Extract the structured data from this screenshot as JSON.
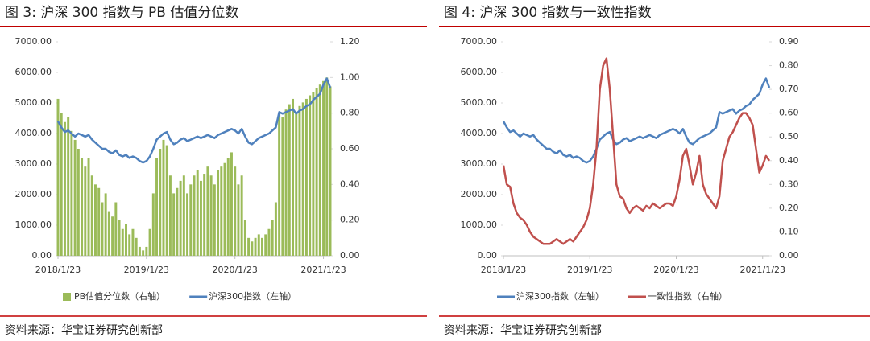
{
  "chart_data": [
    {
      "type": "combo",
      "title": "图 3:  沪深 300 指数与 PB 估值分位数",
      "source": "资料来源：华宝证券研究创新部",
      "categories": [
        "2018/1/23",
        null,
        null,
        null,
        null,
        null,
        null,
        null,
        null,
        null,
        null,
        null,
        null,
        null,
        null,
        null,
        null,
        null,
        null,
        null,
        null,
        null,
        null,
        null,
        null,
        null,
        "2019/1/23",
        null,
        null,
        null,
        null,
        null,
        null,
        null,
        null,
        null,
        null,
        null,
        null,
        null,
        null,
        null,
        null,
        null,
        null,
        null,
        null,
        null,
        null,
        null,
        null,
        null,
        "2020/1/23",
        null,
        null,
        null,
        null,
        null,
        null,
        null,
        null,
        null,
        null,
        null,
        null,
        null,
        null,
        null,
        null,
        null,
        null,
        null,
        null,
        null,
        null,
        null,
        null,
        null,
        "2021/1/23",
        null,
        null
      ],
      "ylim": [
        0,
        7000
      ],
      "yticks": [
        {
          "value": 0,
          "label": "0.00"
        },
        {
          "value": 1000,
          "label": "1000.00"
        },
        {
          "value": 2000,
          "label": "2000.00"
        },
        {
          "value": 3000,
          "label": "3000.00"
        },
        {
          "value": 4000,
          "label": "4000.00"
        },
        {
          "value": 5000,
          "label": "5000.00"
        },
        {
          "value": 6000,
          "label": "6000.00"
        },
        {
          "value": 7000,
          "label": "7000.00"
        }
      ],
      "y2lim": [
        0,
        1.2
      ],
      "y2ticks": [
        {
          "value": 0,
          "label": "0.00"
        },
        {
          "value": 0.2,
          "label": "0.20"
        },
        {
          "value": 0.4,
          "label": "0.40"
        },
        {
          "value": 0.6,
          "label": "0.60"
        },
        {
          "value": 0.8,
          "label": "0.80"
        },
        {
          "value": 1.0,
          "label": "1.00"
        },
        {
          "value": 1.2,
          "label": "1.20"
        }
      ],
      "series": [
        {
          "name": "PB估值分位数（右轴）",
          "type": "bar",
          "axis": "y2",
          "color": "#9bbb59",
          "values": [
            0.88,
            0.8,
            0.75,
            0.78,
            0.7,
            0.65,
            0.6,
            0.55,
            0.5,
            0.55,
            0.45,
            0.4,
            0.38,
            0.3,
            0.35,
            0.25,
            0.22,
            0.3,
            0.2,
            0.15,
            0.18,
            0.12,
            0.15,
            0.1,
            0.05,
            0.03,
            0.05,
            0.15,
            0.35,
            0.55,
            0.6,
            0.65,
            0.62,
            0.45,
            0.35,
            0.38,
            0.42,
            0.45,
            0.35,
            0.4,
            0.45,
            0.48,
            0.42,
            0.46,
            0.5,
            0.45,
            0.4,
            0.48,
            0.5,
            0.52,
            0.55,
            0.58,
            0.5,
            0.4,
            0.45,
            0.2,
            0.1,
            0.08,
            0.1,
            0.12,
            0.1,
            0.12,
            0.15,
            0.2,
            0.3,
            0.8,
            0.78,
            0.82,
            0.85,
            0.88,
            0.8,
            0.84,
            0.86,
            0.88,
            0.9,
            0.92,
            0.94,
            0.96,
            0.98,
            1.0,
            0.95
          ]
        },
        {
          "name": "沪深300指数（左轴）",
          "type": "line",
          "color": "#4f81bd",
          "values": [
            4400,
            4200,
            4050,
            4100,
            4000,
            3900,
            4000,
            3950,
            3900,
            3950,
            3800,
            3700,
            3600,
            3500,
            3500,
            3400,
            3350,
            3450,
            3300,
            3250,
            3300,
            3200,
            3250,
            3200,
            3100,
            3050,
            3100,
            3250,
            3500,
            3800,
            3900,
            4000,
            4050,
            3800,
            3650,
            3700,
            3800,
            3850,
            3750,
            3800,
            3850,
            3900,
            3850,
            3900,
            3950,
            3900,
            3850,
            3950,
            4000,
            4050,
            4100,
            4150,
            4100,
            4000,
            4150,
            3900,
            3700,
            3650,
            3750,
            3850,
            3900,
            3950,
            4000,
            4100,
            4200,
            4700,
            4650,
            4700,
            4750,
            4800,
            4650,
            4750,
            4800,
            4900,
            4950,
            5100,
            5200,
            5300,
            5600,
            5800,
            5500
          ]
        }
      ]
    },
    {
      "type": "line",
      "title": "图 4:  沪深 300 指数与一致性指数",
      "source": "资料来源：华宝证券研究创新部",
      "categories": [
        "2018/1/23",
        null,
        null,
        null,
        null,
        null,
        null,
        null,
        null,
        null,
        null,
        null,
        null,
        null,
        null,
        null,
        null,
        null,
        null,
        null,
        null,
        null,
        null,
        null,
        null,
        null,
        "2019/1/23",
        null,
        null,
        null,
        null,
        null,
        null,
        null,
        null,
        null,
        null,
        null,
        null,
        null,
        null,
        null,
        null,
        null,
        null,
        null,
        null,
        null,
        null,
        null,
        null,
        null,
        "2020/1/23",
        null,
        null,
        null,
        null,
        null,
        null,
        null,
        null,
        null,
        null,
        null,
        null,
        null,
        null,
        null,
        null,
        null,
        null,
        null,
        null,
        null,
        null,
        null,
        null,
        null,
        "2021/1/23",
        null,
        null
      ],
      "ylim": [
        0,
        7000
      ],
      "yticks": [
        {
          "value": 0,
          "label": "0.00"
        },
        {
          "value": 1000,
          "label": "1000.00"
        },
        {
          "value": 2000,
          "label": "2000.00"
        },
        {
          "value": 3000,
          "label": "3000.00"
        },
        {
          "value": 4000,
          "label": "4000.00"
        },
        {
          "value": 5000,
          "label": "5000.00"
        },
        {
          "value": 6000,
          "label": "6000.00"
        },
        {
          "value": 7000,
          "label": "7000.00"
        }
      ],
      "y2lim": [
        0,
        0.9
      ],
      "y2ticks": [
        {
          "value": 0,
          "label": "0.00"
        },
        {
          "value": 0.1,
          "label": "0.10"
        },
        {
          "value": 0.2,
          "label": "0.20"
        },
        {
          "value": 0.3,
          "label": "0.30"
        },
        {
          "value": 0.4,
          "label": "0.40"
        },
        {
          "value": 0.5,
          "label": "0.50"
        },
        {
          "value": 0.6,
          "label": "0.60"
        },
        {
          "value": 0.7,
          "label": "0.70"
        },
        {
          "value": 0.8,
          "label": "0.80"
        },
        {
          "value": 0.9,
          "label": "0.90"
        }
      ],
      "series": [
        {
          "name": "沪深300指数（左轴）",
          "type": "line",
          "color": "#4f81bd",
          "values": [
            4400,
            4200,
            4050,
            4100,
            4000,
            3900,
            4000,
            3950,
            3900,
            3950,
            3800,
            3700,
            3600,
            3500,
            3500,
            3400,
            3350,
            3450,
            3300,
            3250,
            3300,
            3200,
            3250,
            3200,
            3100,
            3050,
            3100,
            3250,
            3500,
            3800,
            3900,
            4000,
            4050,
            3800,
            3650,
            3700,
            3800,
            3850,
            3750,
            3800,
            3850,
            3900,
            3850,
            3900,
            3950,
            3900,
            3850,
            3950,
            4000,
            4050,
            4100,
            4150,
            4100,
            4000,
            4150,
            3900,
            3700,
            3650,
            3750,
            3850,
            3900,
            3950,
            4000,
            4100,
            4200,
            4700,
            4650,
            4700,
            4750,
            4800,
            4650,
            4750,
            4800,
            4900,
            4950,
            5100,
            5200,
            5300,
            5600,
            5800,
            5500
          ]
        },
        {
          "name": "一致性指数（右轴）",
          "type": "line",
          "axis": "y2",
          "color": "#c0504d",
          "values": [
            0.38,
            0.3,
            0.29,
            0.22,
            0.18,
            0.16,
            0.15,
            0.13,
            0.1,
            0.08,
            0.07,
            0.06,
            0.05,
            0.05,
            0.05,
            0.06,
            0.07,
            0.06,
            0.05,
            0.06,
            0.07,
            0.06,
            0.08,
            0.1,
            0.12,
            0.15,
            0.2,
            0.3,
            0.45,
            0.7,
            0.8,
            0.83,
            0.7,
            0.5,
            0.3,
            0.25,
            0.24,
            0.2,
            0.18,
            0.2,
            0.21,
            0.2,
            0.19,
            0.21,
            0.2,
            0.22,
            0.21,
            0.2,
            0.21,
            0.22,
            0.22,
            0.21,
            0.25,
            0.32,
            0.42,
            0.45,
            0.38,
            0.3,
            0.35,
            0.42,
            0.3,
            0.26,
            0.24,
            0.22,
            0.2,
            0.25,
            0.4,
            0.45,
            0.5,
            0.52,
            0.55,
            0.58,
            0.6,
            0.6,
            0.58,
            0.55,
            0.45,
            0.35,
            0.38,
            0.42,
            0.4
          ]
        }
      ]
    }
  ]
}
